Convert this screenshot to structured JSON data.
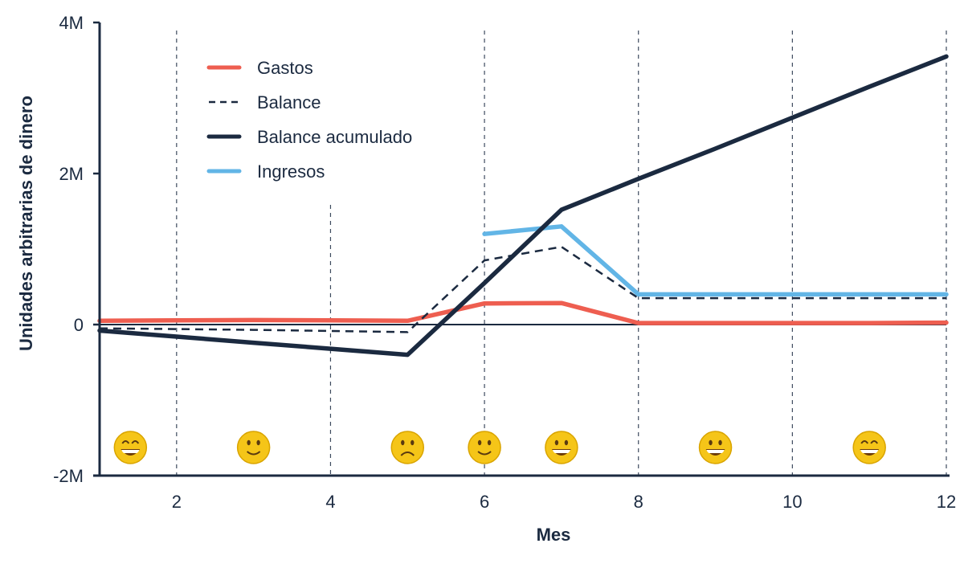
{
  "chart_data": {
    "type": "line",
    "title": "",
    "xlabel": "Mes",
    "ylabel": "Unidades arbitrarias de dinero",
    "xlim": [
      1,
      12
    ],
    "ylim": [
      -2000000,
      4000000
    ],
    "x_ticks": [
      2,
      4,
      6,
      8,
      10,
      12
    ],
    "x_tick_labels": [
      "2",
      "4",
      "6",
      "8",
      "10",
      "12"
    ],
    "y_ticks": [
      -2000000,
      0,
      2000000,
      4000000
    ],
    "y_tick_labels": [
      "-2M",
      "0",
      "2M",
      "4M"
    ],
    "grid": "vertical dashed lines at even months",
    "legend_position": "upper left",
    "series": [
      {
        "name": "Gastos",
        "color": "#ee5e50",
        "style": "solid",
        "x": [
          1,
          2,
          3,
          4,
          5,
          6,
          7,
          8,
          9,
          10,
          11,
          12
        ],
        "values": [
          50000,
          55000,
          60000,
          55000,
          50000,
          280000,
          285000,
          20000,
          20000,
          20000,
          20000,
          25000
        ]
      },
      {
        "name": "Balance",
        "color": "#1b2a40",
        "style": "dashed",
        "x": [
          1,
          2,
          3,
          4,
          5,
          6,
          7,
          8,
          9,
          10,
          11,
          12
        ],
        "values": [
          -50000,
          -60000,
          -70000,
          -85000,
          -100000,
          850000,
          1030000,
          350000,
          350000,
          350000,
          350000,
          350000
        ]
      },
      {
        "name": "Balance acumulado",
        "color": "#1b2a40",
        "style": "solid-thick",
        "x": [
          1,
          2,
          3,
          4,
          5,
          6,
          7,
          8,
          9,
          10,
          11,
          12
        ],
        "values": [
          -80000,
          -160000,
          -240000,
          -320000,
          -400000,
          550000,
          1520000,
          1930000,
          2330000,
          2740000,
          3150000,
          3550000
        ]
      },
      {
        "name": "Ingresos",
        "color": "#62b5e6",
        "style": "solid",
        "x": [
          6,
          7,
          8,
          9,
          10,
          11,
          12
        ],
        "values": [
          1200000,
          1300000,
          400000,
          400000,
          400000,
          400000,
          400000
        ]
      }
    ],
    "annotations": [
      {
        "x": 1.4,
        "emoji": "😄",
        "meaning": "grinning-smiling-eyes"
      },
      {
        "x": 3.0,
        "emoji": "🙂",
        "meaning": "slight-smile"
      },
      {
        "x": 5.0,
        "emoji": "☹️",
        "meaning": "frown"
      },
      {
        "x": 6.0,
        "emoji": "🙂",
        "meaning": "slight-smile"
      },
      {
        "x": 7.0,
        "emoji": "😀",
        "meaning": "grinning"
      },
      {
        "x": 9.0,
        "emoji": "😀",
        "meaning": "grinning"
      },
      {
        "x": 11.0,
        "emoji": "😄",
        "meaning": "grinning-smiling-eyes"
      }
    ]
  },
  "legend": {
    "items": [
      {
        "label": "Gastos",
        "color": "#ee5e50",
        "style": "solid"
      },
      {
        "label": "Balance",
        "color": "#1b2a40",
        "style": "dashed"
      },
      {
        "label": "Balance acumulado",
        "color": "#1b2a40",
        "style": "solid-thick"
      },
      {
        "label": "Ingresos",
        "color": "#62b5e6",
        "style": "solid"
      }
    ]
  },
  "axes": {
    "x_title": "Mes",
    "y_title": "Unidades arbitrarias de dinero"
  }
}
